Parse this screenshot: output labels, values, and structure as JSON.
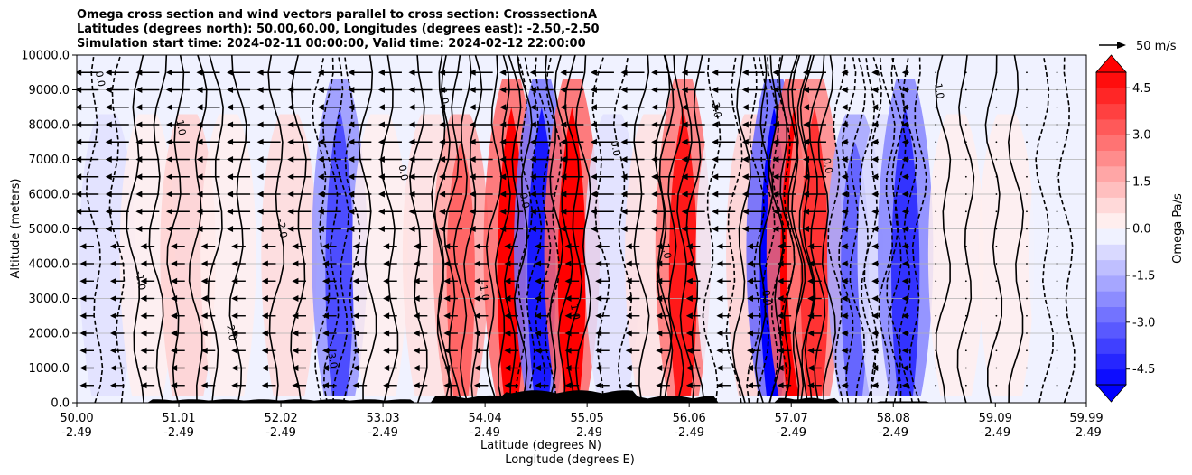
{
  "chart_data": {
    "type": "heatmap",
    "title_lines": [
      "Omega cross section and wind vectors parallel to cross section: CrosssectionA",
      "Latitudes (degrees north): 50.00,60.00, Longitudes (degrees east): -2.50,-2.50",
      "Simulation start time: 2024-02-11 00:00:00, Valid time: 2024-02-12 22:00:00"
    ],
    "ylabel": "Altitude (meters)",
    "xlabel_lat": "Latitude (degrees N)",
    "xlabel_lon": "Longitude (degrees E)",
    "ylim": [
      0,
      10000
    ],
    "yticks": [
      "0.0",
      "1000.0",
      "2000.0",
      "3000.0",
      "4000.0",
      "5000.0",
      "6000.0",
      "7000.0",
      "8000.0",
      "9000.0",
      "10000.0"
    ],
    "xlim": [
      50.0,
      59.99
    ],
    "xticks_lat": [
      "50.00",
      "51.01",
      "52.02",
      "53.03",
      "54.04",
      "55.05",
      "56.06",
      "57.07",
      "58.08",
      "59.09",
      "59.99"
    ],
    "xticks_lon": [
      "-2.49",
      "-2.49",
      "-2.49",
      "-2.49",
      "-2.49",
      "-2.49",
      "-2.49",
      "-2.49",
      "-2.49",
      "-2.49",
      "-2.49"
    ],
    "colorbar": {
      "label": "Omega Pa/s",
      "range": [
        -5.0,
        5.0
      ],
      "ticks": [
        "-4.5",
        "-3.0",
        "-1.5",
        "0.0",
        "1.5",
        "3.0",
        "4.5"
      ],
      "extend": "both",
      "low_color": "#0000ff",
      "high_color": "#ff0000"
    },
    "quiver_key": "50 m/s",
    "contour_labels": [
      "0.0",
      "-1.0",
      "1.0",
      "2.0",
      "-2.0",
      "3.0",
      "0.0",
      "1.0",
      "-1.0",
      "0.0",
      "1.0",
      "0.0",
      "-1.0",
      "2.0",
      "0.0",
      "0.0",
      "-1.0"
    ],
    "omega_columns": [
      {
        "lat": 50.3,
        "value": -1.0
      },
      {
        "lat": 50.7,
        "value": 0.5
      },
      {
        "lat": 51.1,
        "value": 1.5
      },
      {
        "lat": 51.5,
        "value": 0.5
      },
      {
        "lat": 52.1,
        "value": 1.2
      },
      {
        "lat": 52.6,
        "value": -3.5
      },
      {
        "lat": 53.0,
        "value": 0.5
      },
      {
        "lat": 53.5,
        "value": 1.0
      },
      {
        "lat": 53.8,
        "value": 3.0
      },
      {
        "lat": 54.3,
        "value": 5.0
      },
      {
        "lat": 54.6,
        "value": -4.5
      },
      {
        "lat": 54.9,
        "value": 5.0
      },
      {
        "lat": 55.3,
        "value": -1.0
      },
      {
        "lat": 55.7,
        "value": 1.0
      },
      {
        "lat": 56.0,
        "value": 4.5
      },
      {
        "lat": 56.4,
        "value": -0.5
      },
      {
        "lat": 56.7,
        "value": 1.5
      },
      {
        "lat": 56.9,
        "value": -5.0
      },
      {
        "lat": 57.1,
        "value": 5.0
      },
      {
        "lat": 57.3,
        "value": 4.0
      },
      {
        "lat": 57.7,
        "value": -3.0
      },
      {
        "lat": 58.0,
        "value": -1.0
      },
      {
        "lat": 58.2,
        "value": -4.0
      },
      {
        "lat": 58.7,
        "value": 0.5
      },
      {
        "lat": 59.2,
        "value": 0.3
      },
      {
        "lat": 59.7,
        "value": -0.5
      }
    ]
  }
}
